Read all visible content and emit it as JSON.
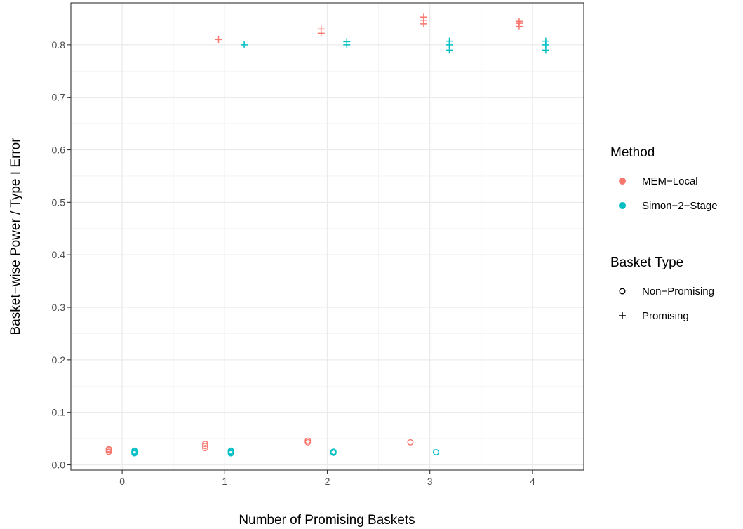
{
  "chart_data": {
    "type": "scatter",
    "xlabel": "Number of Promising Baskets",
    "ylabel": "Basket−wise Power / Type I Error",
    "x_ticks": [
      "0",
      "1",
      "2",
      "3",
      "4"
    ],
    "y_ticks": [
      "0.0",
      "0.1",
      "0.2",
      "0.3",
      "0.4",
      "0.5",
      "0.6",
      "0.7",
      "0.8"
    ],
    "xlim": [
      -0.5,
      4.5
    ],
    "ylim": [
      -0.01,
      0.88
    ],
    "grid": true,
    "legend_position": "right",
    "colors": {
      "MEM-Local": "#F8766D",
      "Simon-2-Stage": "#00BFC4"
    },
    "legends": [
      {
        "title": "Method",
        "items": [
          {
            "label": "MEM−Local",
            "symbol": "dot",
            "color": "#F8766D"
          },
          {
            "label": "Simon−2−Stage",
            "symbol": "dot",
            "color": "#00BFC4"
          }
        ]
      },
      {
        "title": "Basket Type",
        "items": [
          {
            "label": "Non−Promising",
            "symbol": "o",
            "color": "#000000"
          },
          {
            "label": "Promising",
            "symbol": "+",
            "color": "#000000"
          }
        ]
      }
    ],
    "series": [
      {
        "method": "MEM-Local",
        "type": "Non-Promising",
        "points": [
          {
            "x": -0.13,
            "y": 0.025
          },
          {
            "x": -0.13,
            "y": 0.028
          },
          {
            "x": -0.13,
            "y": 0.03
          },
          {
            "x": 0.81,
            "y": 0.032
          },
          {
            "x": 0.81,
            "y": 0.036
          },
          {
            "x": 0.81,
            "y": 0.04
          },
          {
            "x": 1.81,
            "y": 0.043
          },
          {
            "x": 1.81,
            "y": 0.046
          },
          {
            "x": 2.81,
            "y": 0.043
          }
        ]
      },
      {
        "method": "MEM-Local",
        "type": "Promising",
        "points": [
          {
            "x": 0.94,
            "y": 0.81
          },
          {
            "x": 1.94,
            "y": 0.822
          },
          {
            "x": 1.94,
            "y": 0.83
          },
          {
            "x": 2.94,
            "y": 0.84
          },
          {
            "x": 2.94,
            "y": 0.847
          },
          {
            "x": 2.94,
            "y": 0.853
          },
          {
            "x": 3.87,
            "y": 0.835
          },
          {
            "x": 3.87,
            "y": 0.841
          },
          {
            "x": 3.87,
            "y": 0.845
          }
        ]
      },
      {
        "method": "Simon-2-Stage",
        "type": "Non-Promising",
        "points": [
          {
            "x": 0.12,
            "y": 0.022
          },
          {
            "x": 0.12,
            "y": 0.025
          },
          {
            "x": 0.12,
            "y": 0.027
          },
          {
            "x": 1.06,
            "y": 0.022
          },
          {
            "x": 1.06,
            "y": 0.025
          },
          {
            "x": 1.06,
            "y": 0.027
          },
          {
            "x": 2.06,
            "y": 0.023
          },
          {
            "x": 2.06,
            "y": 0.025
          },
          {
            "x": 3.06,
            "y": 0.024
          }
        ]
      },
      {
        "method": "Simon-2-Stage",
        "type": "Promising",
        "points": [
          {
            "x": 1.19,
            "y": 0.8
          },
          {
            "x": 2.19,
            "y": 0.8
          },
          {
            "x": 2.19,
            "y": 0.806
          },
          {
            "x": 3.19,
            "y": 0.79
          },
          {
            "x": 3.19,
            "y": 0.8
          },
          {
            "x": 3.19,
            "y": 0.807
          },
          {
            "x": 4.13,
            "y": 0.79
          },
          {
            "x": 4.13,
            "y": 0.8
          },
          {
            "x": 4.13,
            "y": 0.807
          }
        ]
      }
    ]
  }
}
